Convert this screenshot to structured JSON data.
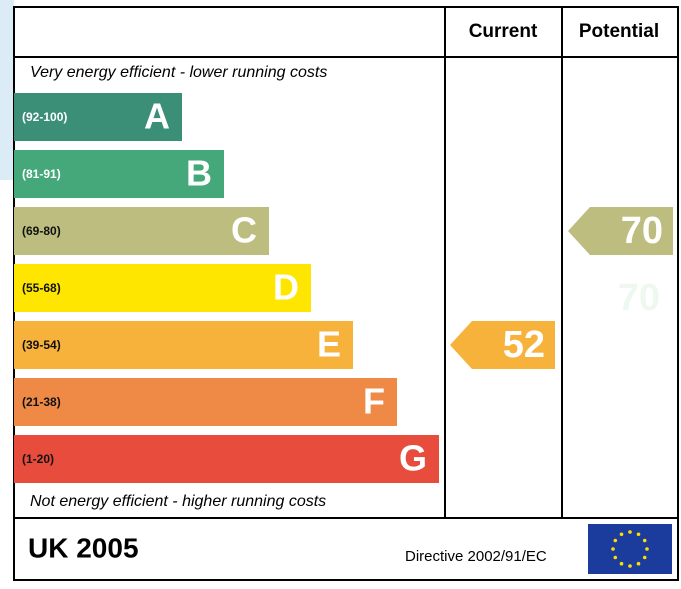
{
  "chart_data": {
    "type": "epc",
    "header": {
      "current": "Current",
      "potential": "Potential"
    },
    "top_note": "Very energy efficient - lower running costs",
    "bottom_note": "Not energy efficient - higher running costs",
    "bands": [
      {
        "letter": "A",
        "range": "(92-100)",
        "color": "#3a8f76"
      },
      {
        "letter": "B",
        "range": "(81-91)",
        "color": "#45a87b"
      },
      {
        "letter": "C",
        "range": "(69-80)",
        "color": "#bdbd80"
      },
      {
        "letter": "D",
        "range": "(55-68)",
        "color": "#ffe600"
      },
      {
        "letter": "E",
        "range": "(39-54)",
        "color": "#f7b23c"
      },
      {
        "letter": "F",
        "range": "(21-38)",
        "color": "#ee8a45"
      },
      {
        "letter": "G",
        "range": "(1-20)",
        "color": "#e84c3d"
      }
    ],
    "current": 52,
    "potential": 70,
    "footer": {
      "country": "UK 2005",
      "directive": "Directive 2002/91/EC"
    }
  }
}
